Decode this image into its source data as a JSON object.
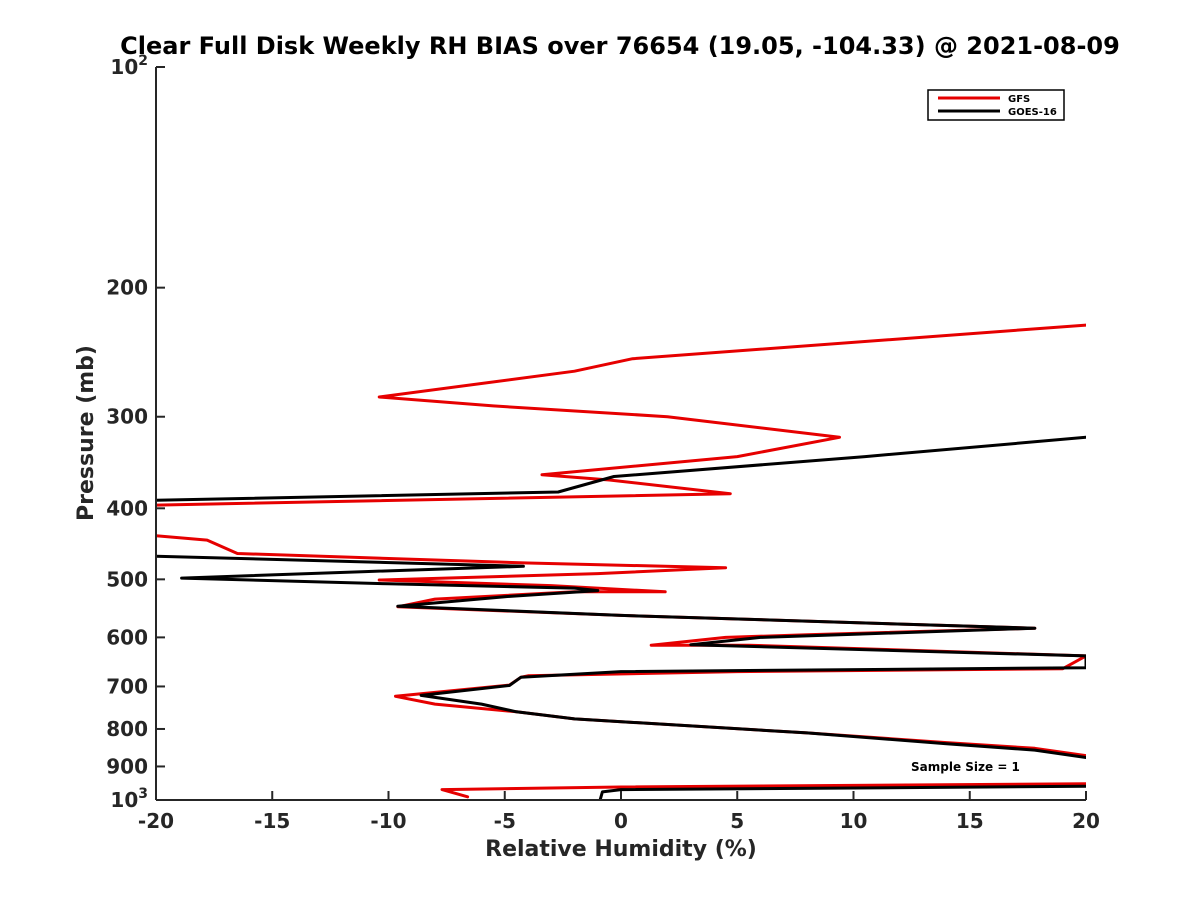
{
  "chart_data": {
    "type": "line",
    "title": "Clear Full Disk Weekly RH BIAS over 76654 (19.05, -104.33) @ 2021-08-09",
    "xlabel": "Relative Humidity (%)",
    "ylabel": "Pressure (mb)",
    "xlim": [
      -20,
      20
    ],
    "ylim": [
      100,
      1000
    ],
    "yscale": "log",
    "y_reversed": true,
    "x_ticks": [
      {
        "value": -20,
        "label": "-20"
      },
      {
        "value": -15,
        "label": "-15"
      },
      {
        "value": -10,
        "label": "-10"
      },
      {
        "value": -5,
        "label": "-5"
      },
      {
        "value": 0,
        "label": "0"
      },
      {
        "value": 5,
        "label": "5"
      },
      {
        "value": 10,
        "label": "10"
      },
      {
        "value": 15,
        "label": "15"
      },
      {
        "value": 20,
        "label": "20"
      }
    ],
    "y_ticks": [
      {
        "value": 100,
        "base": "10",
        "exp": "2"
      },
      {
        "value": 200,
        "label": "200"
      },
      {
        "value": 300,
        "label": "300"
      },
      {
        "value": 400,
        "label": "400"
      },
      {
        "value": 500,
        "label": "500"
      },
      {
        "value": 600,
        "label": "600"
      },
      {
        "value": 700,
        "label": "700"
      },
      {
        "value": 800,
        "label": "800"
      },
      {
        "value": 900,
        "label": "900"
      },
      {
        "value": 1000,
        "base": "10",
        "exp": "3"
      }
    ],
    "legend_position": "top-right",
    "annotation": "Sample Size = 1",
    "series": [
      {
        "name": "GFS",
        "color": "#e60000",
        "points": [
          [
            20,
            225
          ],
          [
            0.5,
            250
          ],
          [
            -2,
            260
          ],
          [
            -10.4,
            282
          ],
          [
            -5.5,
            290
          ],
          [
            2,
            300
          ],
          [
            9.4,
            320
          ],
          [
            5,
            340
          ],
          [
            -3.4,
            360
          ],
          [
            -0.5,
            366
          ],
          [
            4.7,
            382
          ],
          [
            -20,
            396
          ],
          [
            null,
            null
          ],
          [
            -20,
            436
          ],
          [
            -17.8,
            442
          ],
          [
            -16.5,
            461
          ],
          [
            -4,
            475
          ],
          [
            4.5,
            482
          ],
          [
            -1,
            491
          ],
          [
            -10.4,
            501
          ],
          [
            -3,
            510
          ],
          [
            1.9,
            520
          ],
          [
            -2,
            520
          ],
          [
            -8,
            532
          ],
          [
            -9.6,
            545
          ],
          [
            0,
            560
          ],
          [
            17.8,
            583
          ],
          [
            8,
            595
          ],
          [
            4.5,
            600
          ],
          [
            1.3,
            615
          ],
          [
            5.5,
            615
          ],
          [
            20,
            636
          ],
          [
            19,
            662
          ],
          [
            5,
            668
          ],
          [
            -4,
            677
          ],
          [
            -4.3,
            680
          ],
          [
            -4.8,
            697
          ],
          [
            -9.7,
            722
          ],
          [
            -8,
            740
          ],
          [
            -4.5,
            758
          ],
          [
            -2,
            775
          ],
          [
            8,
            810
          ],
          [
            14,
            835
          ],
          [
            17.8,
            850
          ],
          [
            20,
            870
          ],
          [
            null,
            null
          ],
          [
            20,
            950
          ],
          [
            0,
            960
          ],
          [
            -7.7,
            968
          ],
          [
            -6.6,
            990
          ]
        ]
      },
      {
        "name": "GOES-16",
        "color": "#000000",
        "points": [
          [
            20,
            320
          ],
          [
            10.5,
            340
          ],
          [
            -0.3,
            362
          ],
          [
            -2.7,
            380
          ],
          [
            -20,
            390
          ],
          [
            null,
            null
          ],
          [
            -20,
            465
          ],
          [
            -4.2,
            480
          ],
          [
            -11,
            488
          ],
          [
            -18.9,
            498
          ],
          [
            -10,
            507
          ],
          [
            -2,
            514
          ],
          [
            -1,
            518
          ],
          [
            -5,
            528
          ],
          [
            -9.6,
            544
          ],
          [
            0,
            560
          ],
          [
            17.8,
            583
          ],
          [
            6,
            600
          ],
          [
            3,
            614
          ],
          [
            20,
            636
          ],
          [
            20,
            660
          ],
          [
            0,
            668
          ],
          [
            -4.3,
            680
          ],
          [
            -4.8,
            698
          ],
          [
            -8.6,
            720
          ],
          [
            -6,
            740
          ],
          [
            -4.5,
            758
          ],
          [
            -2,
            775
          ],
          [
            8,
            810
          ],
          [
            14,
            838
          ],
          [
            17.8,
            855
          ],
          [
            20,
            875
          ],
          [
            null,
            null
          ],
          [
            20,
            958
          ],
          [
            0,
            968
          ],
          [
            -0.8,
            975
          ],
          [
            -0.9,
            1000
          ]
        ]
      }
    ]
  }
}
